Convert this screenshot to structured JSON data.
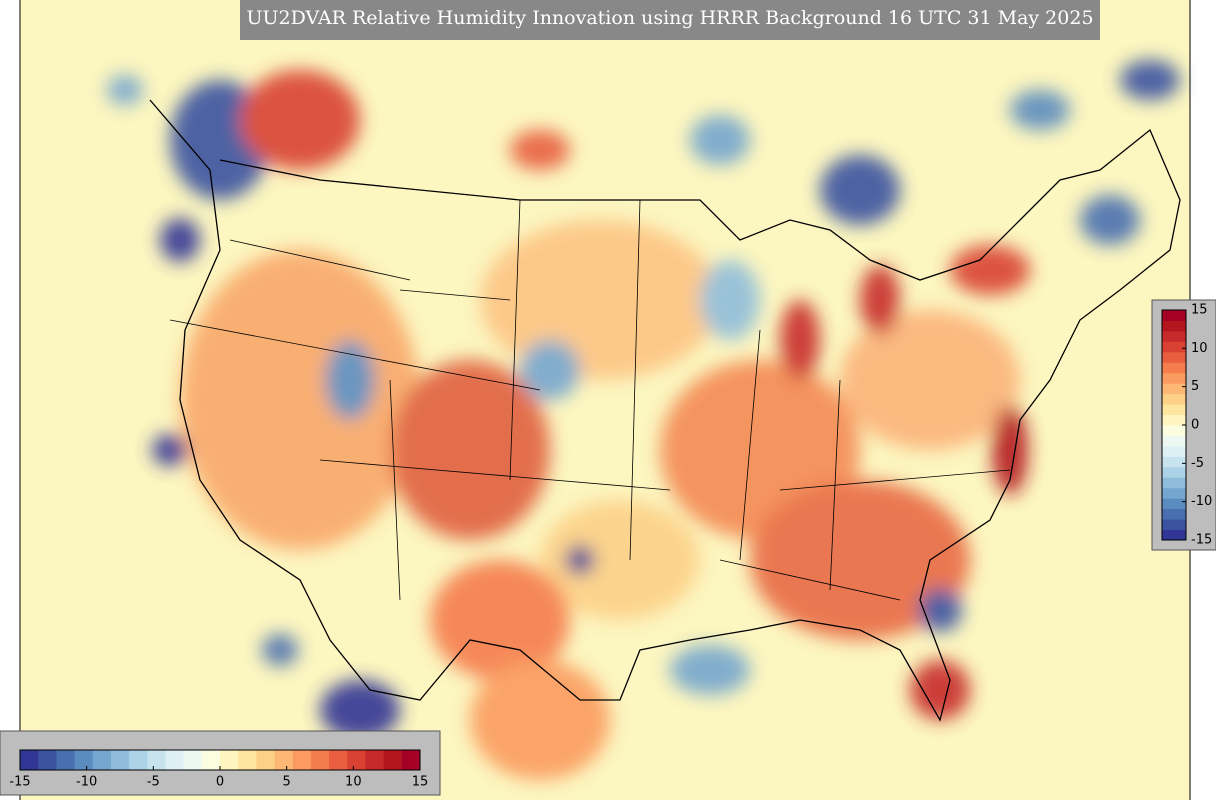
{
  "title": "UU2DVAR Relative Humidity Innovation using HRRR Background 16 UTC 31 May 2025",
  "colorbar": {
    "clim": [
      -15,
      15
    ],
    "ticks": [
      -15,
      -10,
      -5,
      0,
      5,
      10,
      15
    ],
    "colors": [
      "#313695",
      "#3a52a0",
      "#4a6fb0",
      "#5b8cc0",
      "#74a6cf",
      "#8fbddb",
      "#abd2e6",
      "#c6e3ee",
      "#def0f4",
      "#eef8f2",
      "#fbfde0",
      "#fff5c0",
      "#fee6a0",
      "#fdd088",
      "#fdb873",
      "#fb9b5f",
      "#f57d4d",
      "#e85e3f",
      "#d94232",
      "#c72a2a",
      "#b3161f",
      "#a50026"
    ]
  },
  "colorbar_right": {
    "clim": [
      -15,
      15
    ],
    "ticks": [
      15,
      10,
      5,
      0,
      -5,
      -10,
      -15
    ]
  }
}
